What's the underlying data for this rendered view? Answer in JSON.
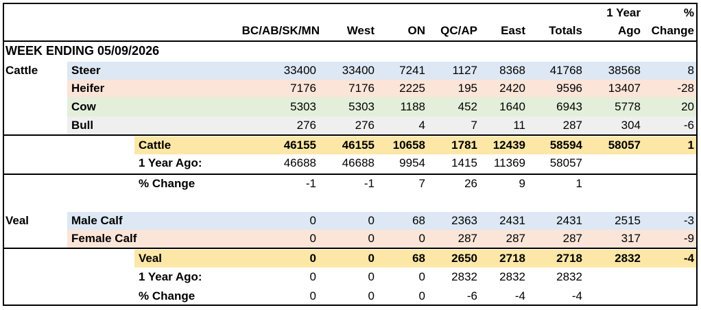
{
  "colors": {
    "steer": "#dde8f4",
    "heifer": "#fbe4d8",
    "cow": "#e3efda",
    "bull": "#efefef",
    "total": "#fde7a6"
  },
  "header": {
    "columns": [
      "BC/AB/SK/MN",
      "West",
      "ON",
      "QC/AP",
      "East",
      "Totals"
    ],
    "one_year_line1": "1 Year",
    "one_year_line2": "Ago",
    "pct_line1": "%",
    "pct_line2": "Change"
  },
  "week_label": "WEEK ENDING 05/09/2026",
  "cattle": {
    "group_label": "Cattle",
    "rows": [
      {
        "label": "Steer",
        "values": [
          "33400",
          "33400",
          "7241",
          "1127",
          "8368",
          "41768",
          "38568",
          "8"
        ]
      },
      {
        "label": "Heifer",
        "values": [
          "7176",
          "7176",
          "2225",
          "195",
          "2420",
          "9596",
          "13407",
          "-28"
        ]
      },
      {
        "label": "Cow",
        "values": [
          "5303",
          "5303",
          "1188",
          "452",
          "1640",
          "6943",
          "5778",
          "20"
        ]
      },
      {
        "label": "Bull",
        "values": [
          "276",
          "276",
          "4",
          "7",
          "11",
          "287",
          "304",
          "-6"
        ]
      }
    ],
    "total": {
      "label": "Cattle",
      "values": [
        "46155",
        "46155",
        "10658",
        "1781",
        "12439",
        "58594",
        "58057",
        "1"
      ]
    },
    "year_ago": {
      "label": "1 Year Ago:",
      "values": [
        "46688",
        "46688",
        "9954",
        "1415",
        "11369",
        "58057"
      ]
    },
    "pct_change": {
      "label": "% Change",
      "values": [
        "-1",
        "-1",
        "7",
        "26",
        "9",
        "1"
      ]
    }
  },
  "veal": {
    "group_label": "Veal",
    "rows": [
      {
        "label": "Male Calf",
        "values": [
          "0",
          "0",
          "68",
          "2363",
          "2431",
          "2431",
          "2515",
          "-3"
        ]
      },
      {
        "label": "Female Calf",
        "values": [
          "0",
          "0",
          "0",
          "287",
          "287",
          "287",
          "317",
          "-9"
        ]
      }
    ],
    "total": {
      "label": "Veal",
      "values": [
        "0",
        "0",
        "68",
        "2650",
        "2718",
        "2718",
        "2832",
        "-4"
      ]
    },
    "year_ago": {
      "label": "1 Year Ago:",
      "values": [
        "0",
        "0",
        "0",
        "2832",
        "2832",
        "2832"
      ]
    },
    "pct_change": {
      "label": "% Change",
      "values": [
        "0",
        "0",
        "0",
        "-6",
        "-4",
        "-4"
      ]
    }
  }
}
